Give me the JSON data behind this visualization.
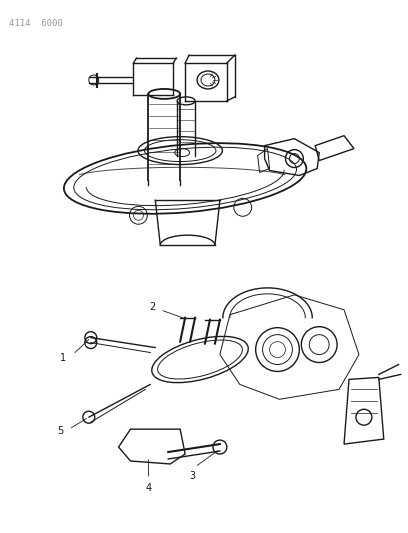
{
  "header_text": "4114  6000",
  "background_color": "#ffffff",
  "line_color": "#1a1a1a",
  "gray_color": "#999999",
  "text_color": "#1a1a1a",
  "figsize": [
    4.08,
    5.33
  ],
  "dpi": 100,
  "header_fontsize": 6.5,
  "label_fontsize": 7
}
